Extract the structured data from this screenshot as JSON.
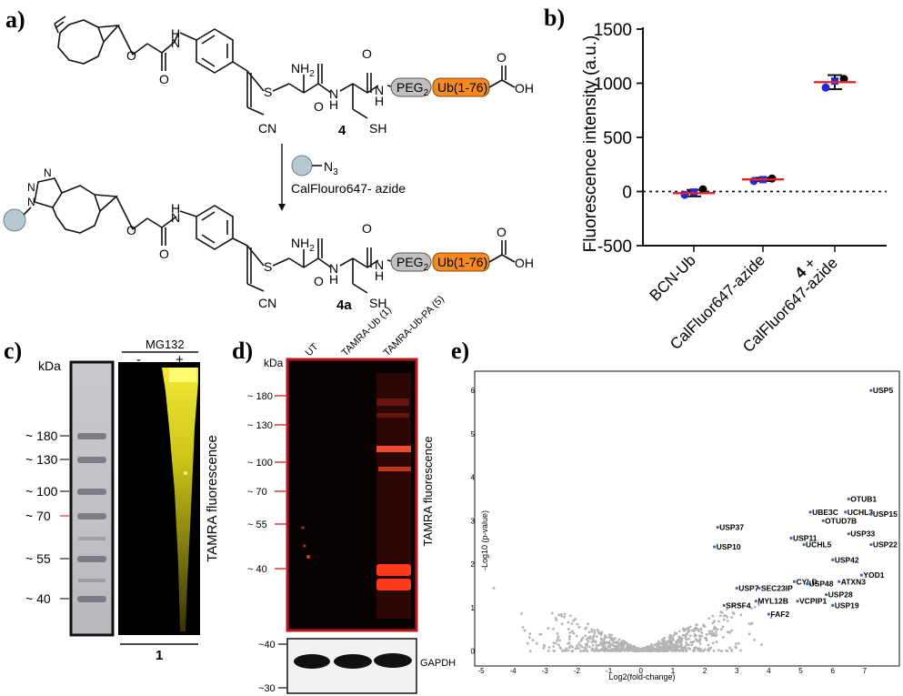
{
  "panels": {
    "a": {
      "label": "a)",
      "compound_top": "4",
      "compound_bottom": "4a",
      "reagent": "CalFlouro647- azide",
      "azide_label": "N",
      "azide_sub": "3",
      "peg_label": "PEG",
      "peg_sub": "2",
      "ub_label": "Ub(1-76)",
      "atom_nh2": "NH",
      "atom_nh2_sub": "2",
      "atom_h": "H",
      "atom_n": "N",
      "atom_o": "O",
      "atom_s": "S",
      "atom_cn": "CN",
      "atom_sh": "SH",
      "atom_oh": "OH",
      "ub_color": "#f28a20",
      "peg_color": "#bfbfbf",
      "probe_color": "#b6c9d3"
    },
    "b": {
      "label": "b)",
      "x_labels": [
        "BCN-Ub",
        "CalFluor647-azide"
      ],
      "x_label3_bold": "4",
      "x_label3_plus": " +",
      "x_label3_text": "CalFluor647-azide"
    },
    "c": {
      "label": "c)",
      "kda": "kDa",
      "markers": [
        "180",
        "130",
        "100",
        "70",
        "55",
        "40"
      ],
      "tilde": "~",
      "treatment": "MG132",
      "minus": "-",
      "plus": "+",
      "side_label": "TAMRA fluorescence",
      "compound": "1"
    },
    "d": {
      "label": "d)",
      "kda": "kDa",
      "lanes": [
        "UT",
        "TAMRA-Ub (1)",
        "TAMRA-Ub-PA (5)"
      ],
      "markers": [
        "180",
        "130",
        "100",
        "70",
        "55",
        "40"
      ],
      "gapdh_markers": [
        "40",
        "30"
      ],
      "side_label": "TAMRA fluorescence",
      "gapdh_label": "GAPDH"
    },
    "e": {
      "label": "e)"
    }
  },
  "chart_data": [
    {
      "type": "scatter",
      "panel": "b",
      "ylabel": "Fluorescence intensity (a.u.)",
      "ylim": [
        -500,
        1500
      ],
      "yticks": [
        -500,
        0,
        500,
        1000,
        1500
      ],
      "categories": [
        "BCN-Ub",
        "CalFluor647-azide",
        "4 + CalFluor647-azide"
      ],
      "baseline": 0,
      "groups": [
        {
          "category": "BCN-Ub",
          "mean": -15,
          "error": 30,
          "points": [
            -30,
            -5,
            20
          ]
        },
        {
          "category": "CalFluor647-azide",
          "mean": 112,
          "error": 15,
          "points": [
            98,
            110,
            120
          ]
        },
        {
          "category": "4 + CalFluor647-azide",
          "mean": 1010,
          "error": 65,
          "points": [
            960,
            1020,
            1040
          ]
        }
      ],
      "colors": {
        "point_a": "#1f2bd6",
        "point_b": "#000000",
        "mean_line": "#e8202a"
      }
    },
    {
      "type": "scatter",
      "panel": "e",
      "xlabel": "Log2(fold-change)",
      "ylabel": "-Log10 (p-value)",
      "xlim": [
        -5,
        8
      ],
      "ylim": [
        -0.3,
        6.4
      ],
      "xticks": [
        -5,
        -4,
        -3,
        -2,
        -1,
        0,
        1,
        2,
        3,
        4,
        5,
        6,
        7
      ],
      "yticks": [
        0,
        1,
        2,
        3,
        4,
        5,
        6
      ],
      "background_color": "#b4b4b4",
      "highlight_color": "#4a64b4",
      "labeled": [
        {
          "name": "USP5",
          "x": 7.2,
          "y": 6.0
        },
        {
          "name": "OTUB1",
          "x": 6.5,
          "y": 3.5
        },
        {
          "name": "UBE3C",
          "x": 5.3,
          "y": 3.2
        },
        {
          "name": "UCHL3",
          "x": 6.4,
          "y": 3.2
        },
        {
          "name": "USP15",
          "x": 7.2,
          "y": 3.15
        },
        {
          "name": "OTUD7B",
          "x": 5.7,
          "y": 3.0
        },
        {
          "name": "USP37",
          "x": 2.4,
          "y": 2.85
        },
        {
          "name": "USP33",
          "x": 6.5,
          "y": 2.7
        },
        {
          "name": "USP11",
          "x": 4.7,
          "y": 2.6
        },
        {
          "name": "UCHL5",
          "x": 5.1,
          "y": 2.45
        },
        {
          "name": "USP22",
          "x": 7.2,
          "y": 2.45
        },
        {
          "name": "USP10",
          "x": 2.3,
          "y": 2.4
        },
        {
          "name": "USP42",
          "x": 6.0,
          "y": 2.1
        },
        {
          "name": "YOD1",
          "x": 6.9,
          "y": 1.75
        },
        {
          "name": "CYLD",
          "x": 4.8,
          "y": 1.6
        },
        {
          "name": "ATXN3",
          "x": 6.2,
          "y": 1.6
        },
        {
          "name": "USP48",
          "x": 5.2,
          "y": 1.55
        },
        {
          "name": "USP7",
          "x": 3.0,
          "y": 1.45
        },
        {
          "name": "SEC23IP",
          "x": 3.7,
          "y": 1.45
        },
        {
          "name": "USP28",
          "x": 5.8,
          "y": 1.3
        },
        {
          "name": "MYL12B",
          "x": 3.6,
          "y": 1.15
        },
        {
          "name": "VCPIP1",
          "x": 4.9,
          "y": 1.15
        },
        {
          "name": "SRSF4",
          "x": 2.6,
          "y": 1.05
        },
        {
          "name": "USP19",
          "x": 6.0,
          "y": 1.05
        },
        {
          "name": "FAF2",
          "x": 4.0,
          "y": 0.85
        }
      ]
    }
  ]
}
